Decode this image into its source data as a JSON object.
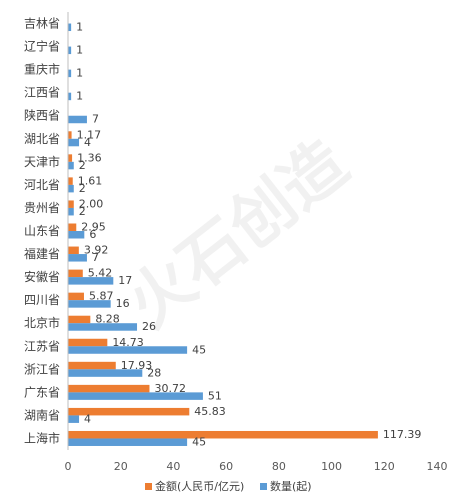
{
  "chart_data": {
    "type": "bar",
    "orientation": "horizontal",
    "categories": [
      "吉林省",
      "辽宁省",
      "重庆市",
      "江西省",
      "陕西省",
      "湖北省",
      "天津市",
      "河北省",
      "贵州省",
      "山东省",
      "福建省",
      "安徽省",
      "四川省",
      "北京市",
      "江苏省",
      "浙江省",
      "广东省",
      "湖南省",
      "上海市"
    ],
    "series": [
      {
        "name": "金额(人民币/亿元)",
        "color": "#ED7D31",
        "values": [
          null,
          null,
          null,
          null,
          null,
          1.17,
          1.36,
          1.61,
          2.0,
          2.95,
          3.92,
          5.42,
          5.87,
          8.28,
          14.73,
          17.93,
          30.72,
          45.83,
          117.39
        ],
        "labels": [
          "",
          "",
          "",
          "",
          "",
          "1.17",
          "1.36",
          "1.61",
          "2.00",
          "2.95",
          "3.92",
          "5.42",
          "5.87",
          "8.28",
          "14.73",
          "17.93",
          "30.72",
          "45.83",
          "117.39"
        ]
      },
      {
        "name": "数量(起)",
        "color": "#5B9BD5",
        "values": [
          1,
          1,
          1,
          1,
          7,
          4,
          2,
          2,
          2,
          6,
          7,
          17,
          16,
          26,
          45,
          28,
          51,
          4,
          45
        ],
        "labels": [
          "1",
          "1",
          "1",
          "1",
          "7",
          "4",
          "2",
          "2",
          "2",
          "6",
          "7",
          "17",
          "16",
          "26",
          "45",
          "28",
          "51",
          "4",
          "45"
        ]
      }
    ],
    "xlim": [
      0,
      140
    ],
    "xticks": [
      "0",
      "20",
      "40",
      "60",
      "80",
      "100",
      "120",
      "140"
    ],
    "legend": "bottom",
    "grid": false
  },
  "watermark": "火石创造"
}
